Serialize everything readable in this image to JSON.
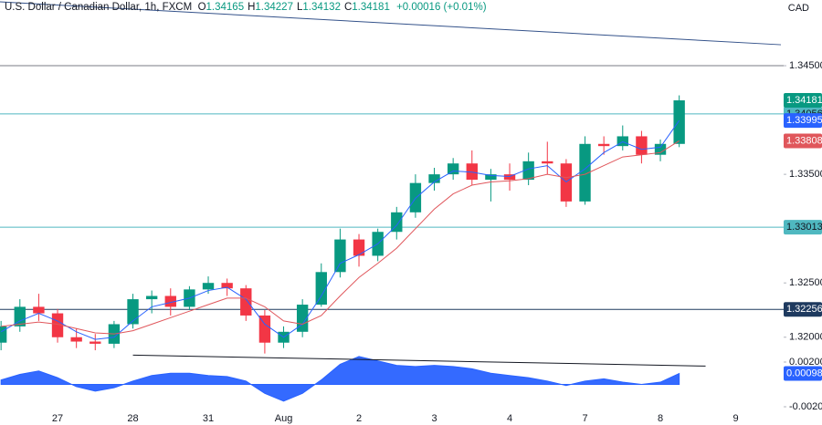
{
  "header": {
    "symbol": "U.S. Dollar / Canadian Dollar, 1h, FXCM",
    "quote": [
      {
        "key": "O",
        "value": "1.34165"
      },
      {
        "key": "H",
        "value": "1.34227"
      },
      {
        "key": "L",
        "value": "1.34132"
      },
      {
        "key": "C",
        "value": "1.34181"
      }
    ],
    "change": "+0.00016 (+0.01%)",
    "currency": "CAD"
  },
  "chart_data": [
    {
      "type": "candlestick",
      "up_color": "#089981",
      "down_color": "#f23645",
      "x": [
        -0.75,
        -0.5,
        -0.25,
        0,
        0.25,
        0.5,
        0.75,
        1,
        1.25,
        1.5,
        1.75,
        2,
        2.25,
        2.5,
        2.75,
        3,
        3.25,
        3.5,
        3.75,
        4,
        4.25,
        4.5,
        4.75,
        5,
        5.25,
        5.5,
        5.75,
        6,
        6.25,
        6.5,
        6.75,
        7,
        7.25,
        7.5,
        7.75,
        8,
        8.25
      ],
      "open": [
        1.3195,
        1.321,
        1.3228,
        1.3222,
        1.32,
        1.3196,
        1.3194,
        1.3212,
        1.3235,
        1.3238,
        1.3228,
        1.3244,
        1.325,
        1.3245,
        1.322,
        1.3195,
        1.3205,
        1.323,
        1.326,
        1.329,
        1.3275,
        1.3297,
        1.3315,
        1.3342,
        1.335,
        1.336,
        1.3345,
        1.335,
        1.3345,
        1.3362,
        1.336,
        1.3325,
        1.3378,
        1.3376,
        1.3385,
        1.3368,
        1.3378
      ],
      "high": [
        1.3215,
        1.3235,
        1.324,
        1.3226,
        1.3208,
        1.3203,
        1.3215,
        1.324,
        1.3243,
        1.3245,
        1.3247,
        1.3256,
        1.3254,
        1.3248,
        1.3225,
        1.321,
        1.3235,
        1.3268,
        1.33,
        1.3295,
        1.33,
        1.332,
        1.335,
        1.3356,
        1.3365,
        1.3372,
        1.3355,
        1.336,
        1.337,
        1.338,
        1.3364,
        1.3385,
        1.3385,
        1.3395,
        1.339,
        1.3382,
        1.34227
      ],
      "low": [
        1.3188,
        1.3205,
        1.3215,
        1.3195,
        1.319,
        1.3188,
        1.319,
        1.3208,
        1.3222,
        1.322,
        1.3225,
        1.324,
        1.3238,
        1.3215,
        1.3185,
        1.319,
        1.32,
        1.3228,
        1.3255,
        1.3265,
        1.327,
        1.329,
        1.331,
        1.3335,
        1.3345,
        1.334,
        1.3325,
        1.3335,
        1.334,
        1.335,
        1.332,
        1.3322,
        1.3368,
        1.3372,
        1.336,
        1.3362,
        1.3375
      ],
      "close": [
        1.321,
        1.3228,
        1.3222,
        1.32,
        1.3196,
        1.3194,
        1.3212,
        1.3235,
        1.3238,
        1.3228,
        1.3244,
        1.325,
        1.3245,
        1.322,
        1.3195,
        1.3205,
        1.323,
        1.326,
        1.329,
        1.3275,
        1.3297,
        1.3315,
        1.3342,
        1.335,
        1.336,
        1.3345,
        1.335,
        1.3345,
        1.3362,
        1.336,
        1.3325,
        1.3378,
        1.3376,
        1.3385,
        1.3368,
        1.3378,
        1.34181
      ],
      "lines": [
        {
          "color": "#2962ff",
          "values": [
            1.3205,
            1.3215,
            1.3222,
            1.3215,
            1.3205,
            1.3198,
            1.32,
            1.3215,
            1.3228,
            1.3232,
            1.3236,
            1.3243,
            1.3246,
            1.3235,
            1.3212,
            1.32,
            1.3212,
            1.3238,
            1.3268,
            1.3276,
            1.3286,
            1.3303,
            1.3328,
            1.3343,
            1.3353,
            1.3352,
            1.3349,
            1.3348,
            1.3355,
            1.3358,
            1.3343,
            1.3355,
            1.337,
            1.338,
            1.3373,
            1.3375,
            1.33995
          ]
        },
        {
          "color": "#e0565b",
          "values": [
            1.321,
            1.3212,
            1.3214,
            1.3212,
            1.3208,
            1.3204,
            1.3203,
            1.3206,
            1.3212,
            1.3218,
            1.3224,
            1.323,
            1.3236,
            1.3236,
            1.3228,
            1.3215,
            1.3212,
            1.322,
            1.3238,
            1.3255,
            1.3268,
            1.3282,
            1.33,
            1.3318,
            1.3332,
            1.334,
            1.3343,
            1.3344,
            1.3346,
            1.335,
            1.3347,
            1.335,
            1.3358,
            1.3366,
            1.3368,
            1.337,
            1.33808
          ]
        }
      ],
      "levels": [
        {
          "value": 1.345,
          "color": "#787b86",
          "tag": false
        },
        {
          "value": 1.34056,
          "color": "#4fb8c0",
          "tag": true,
          "text_color": "#131722"
        },
        {
          "value": 1.33013,
          "color": "#4fb8c0",
          "tag": true,
          "text_color": "#131722"
        },
        {
          "value": 1.32256,
          "color": "#1e3a5f",
          "tag": true,
          "text_color": "#ffffff"
        }
      ],
      "trendlines": [
        {
          "x": [
            -0.764,
            9.6
          ],
          "y": [
            1.35088,
            1.34693
          ],
          "color": "#34528a"
        }
      ],
      "xlim": [
        -0.764,
        9.636
      ],
      "ylim": [
        1.3183,
        1.35105
      ],
      "yticks": [
        {
          "value": 1.345,
          "label": "1.34500"
        },
        {
          "value": 1.335,
          "label": "1.33500"
        },
        {
          "value": 1.325,
          "label": "1.32500"
        },
        {
          "value": 1.32,
          "label": "1.32000"
        }
      ],
      "xticks": [
        {
          "value": 0,
          "label": "27"
        },
        {
          "value": 1,
          "label": "28"
        },
        {
          "value": 2,
          "label": "31"
        },
        {
          "value": 3,
          "label": "Aug"
        },
        {
          "value": 4,
          "label": "2"
        },
        {
          "value": 5,
          "label": "3"
        },
        {
          "value": 6,
          "label": "4"
        },
        {
          "value": 7,
          "label": "7"
        },
        {
          "value": 8,
          "label": "8"
        },
        {
          "value": 9,
          "label": "9"
        }
      ]
    },
    {
      "type": "area",
      "color": "#2962ff",
      "values": [
        0.0004,
        0.0009,
        0.0012,
        0.0006,
        -0.0002,
        -0.0006,
        -0.0003,
        0.0003,
        0.0008,
        0.001,
        0.001,
        0.0008,
        0.0007,
        0.0003,
        -0.0008,
        -0.0015,
        -0.0008,
        0.0004,
        0.0018,
        0.0025,
        0.0021,
        0.0017,
        0.0016,
        0.0017,
        0.0016,
        0.0014,
        0.001,
        0.0008,
        0.0006,
        0.0003,
        -0.0001,
        0.0003,
        0.0005,
        0.0002,
        0.0,
        0.0002,
        0.00098
      ],
      "trendlines": [
        {
          "x": [
            1.0,
            8.6
          ],
          "y": [
            0.00262,
            0.00164
          ],
          "color": "#131722"
        }
      ],
      "ylim": [
        -0.00249,
        0.00257
      ],
      "yticks": [
        {
          "value": 0.002,
          "label": "0.00200"
        },
        {
          "value": -0.002,
          "label": "-0.00200"
        }
      ]
    }
  ]
}
